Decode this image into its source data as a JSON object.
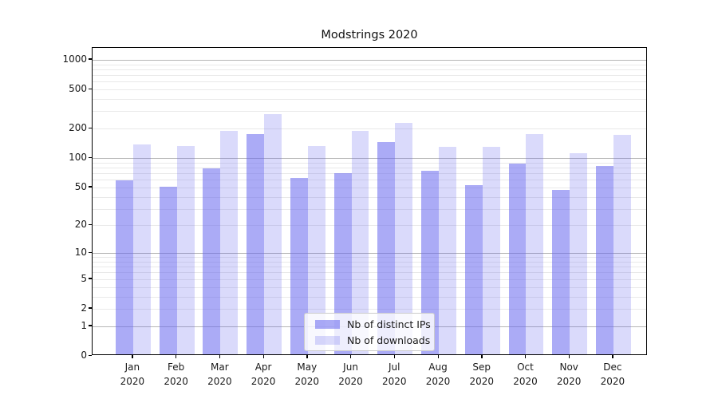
{
  "chart_data": {
    "type": "bar",
    "title": "Modstrings 2020",
    "categories": [
      "Jan 2020",
      "Feb 2020",
      "Mar 2020",
      "Apr 2020",
      "May 2020",
      "Jun 2020",
      "Jul 2020",
      "Aug 2020",
      "Sep 2020",
      "Oct 2020",
      "Nov 2020",
      "Dec 2020"
    ],
    "series": [
      {
        "name": "Nb of distinct IPs",
        "color": "rgba(102,102,238,0.55)",
        "values": [
          57,
          49,
          76,
          170,
          60,
          68,
          141,
          71,
          51,
          84,
          45,
          80
        ]
      },
      {
        "name": "Nb of downloads",
        "color": "rgba(102,102,238,0.24)",
        "values": [
          134,
          128,
          184,
          272,
          128,
          183,
          222,
          126,
          126,
          168,
          108,
          167
        ]
      }
    ],
    "yscale": "log1p",
    "yticks": [
      0,
      1,
      2,
      5,
      10,
      20,
      50,
      100,
      200,
      500,
      1000
    ],
    "ylim": [
      0,
      1320
    ],
    "xlabel": "",
    "ylabel": "",
    "grid": true,
    "legend_position": "lower center",
    "colors": {
      "major_grid": "#b6b6b6",
      "minor_grid": "#e9e9e9",
      "spine": "#000000",
      "text": "#1a1a1a"
    }
  }
}
